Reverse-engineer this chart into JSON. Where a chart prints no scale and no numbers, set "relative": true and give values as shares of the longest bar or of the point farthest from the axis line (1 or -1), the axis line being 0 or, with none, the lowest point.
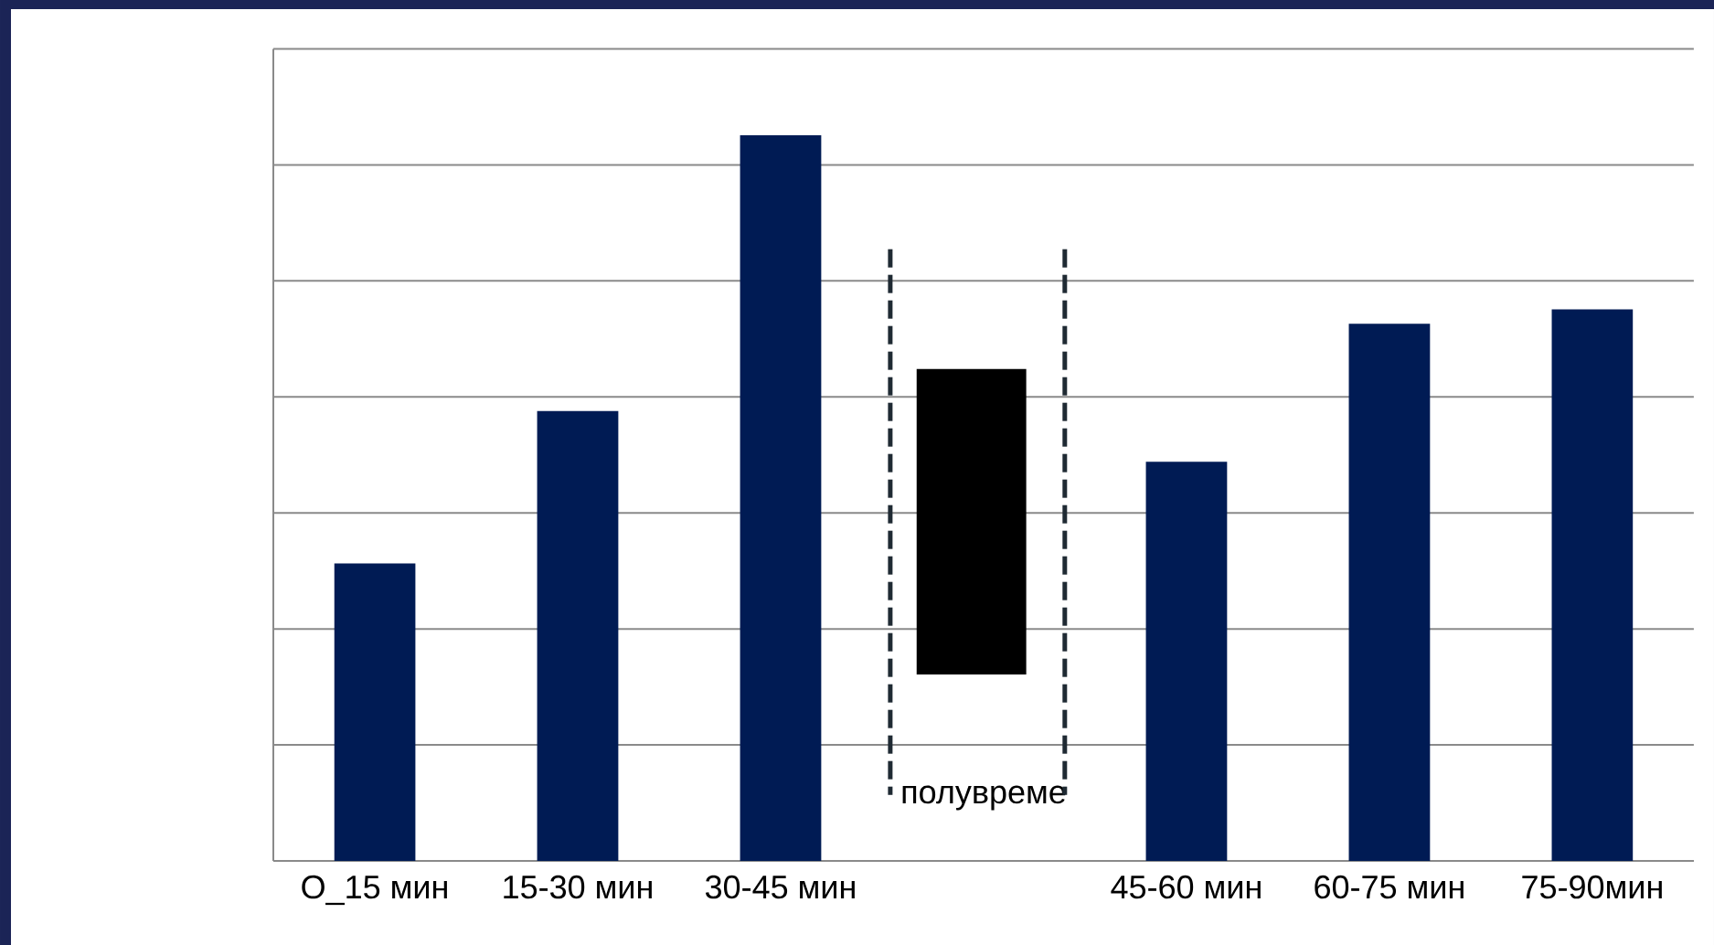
{
  "chart_data": {
    "type": "bar",
    "relative": true,
    "categories": [
      "О_15 мин",
      "15-30 мин",
      "30-45 мин",
      "полувреме",
      "45-60 мин",
      "60-75 мин",
      "75-90мин"
    ],
    "values": [
      0.41,
      0.62,
      1,
      null,
      0.55,
      0.74,
      0.76
    ],
    "color": "#001b54",
    "grid": "y"
  }
}
